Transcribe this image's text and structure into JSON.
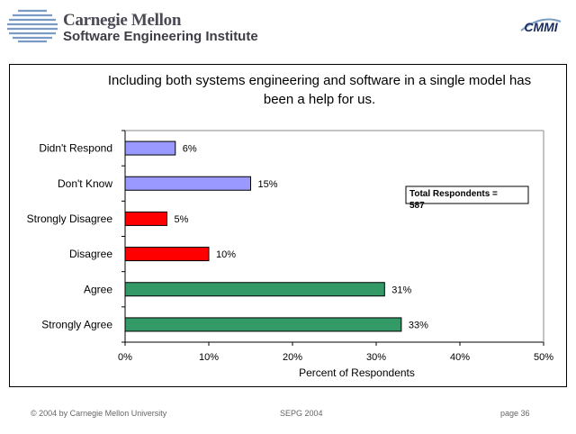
{
  "header": {
    "org_name": "Carnegie Mellon",
    "institute": "Software Engineering Institute",
    "badge": "CMMI"
  },
  "chart_data": {
    "type": "bar",
    "orientation": "horizontal",
    "title": "Including both systems engineering and software in a single model has been a help for us.",
    "categories": [
      "Didn't Respond",
      "Don't Know",
      "Strongly Disagree",
      "Disagree",
      "Agree",
      "Strongly Agree"
    ],
    "values": [
      6,
      15,
      5,
      10,
      31,
      33
    ],
    "data_labels": [
      "6%",
      "15%",
      "5%",
      "10%",
      "31%",
      "33%"
    ],
    "bar_colors": [
      "#9999ff",
      "#9999ff",
      "#ff0000",
      "#ff0000",
      "#339966",
      "#339966"
    ],
    "xlabel": "Percent of Respondents",
    "xlim": [
      0,
      50
    ],
    "xticks": [
      "0%",
      "10%",
      "20%",
      "30%",
      "40%",
      "50%"
    ],
    "annotation": "Total Respondents = 587",
    "grid": false
  },
  "footer": {
    "copyright": "© 2004 by Carnegie Mellon University",
    "event": "SEPG 2004",
    "page": "page 36"
  }
}
